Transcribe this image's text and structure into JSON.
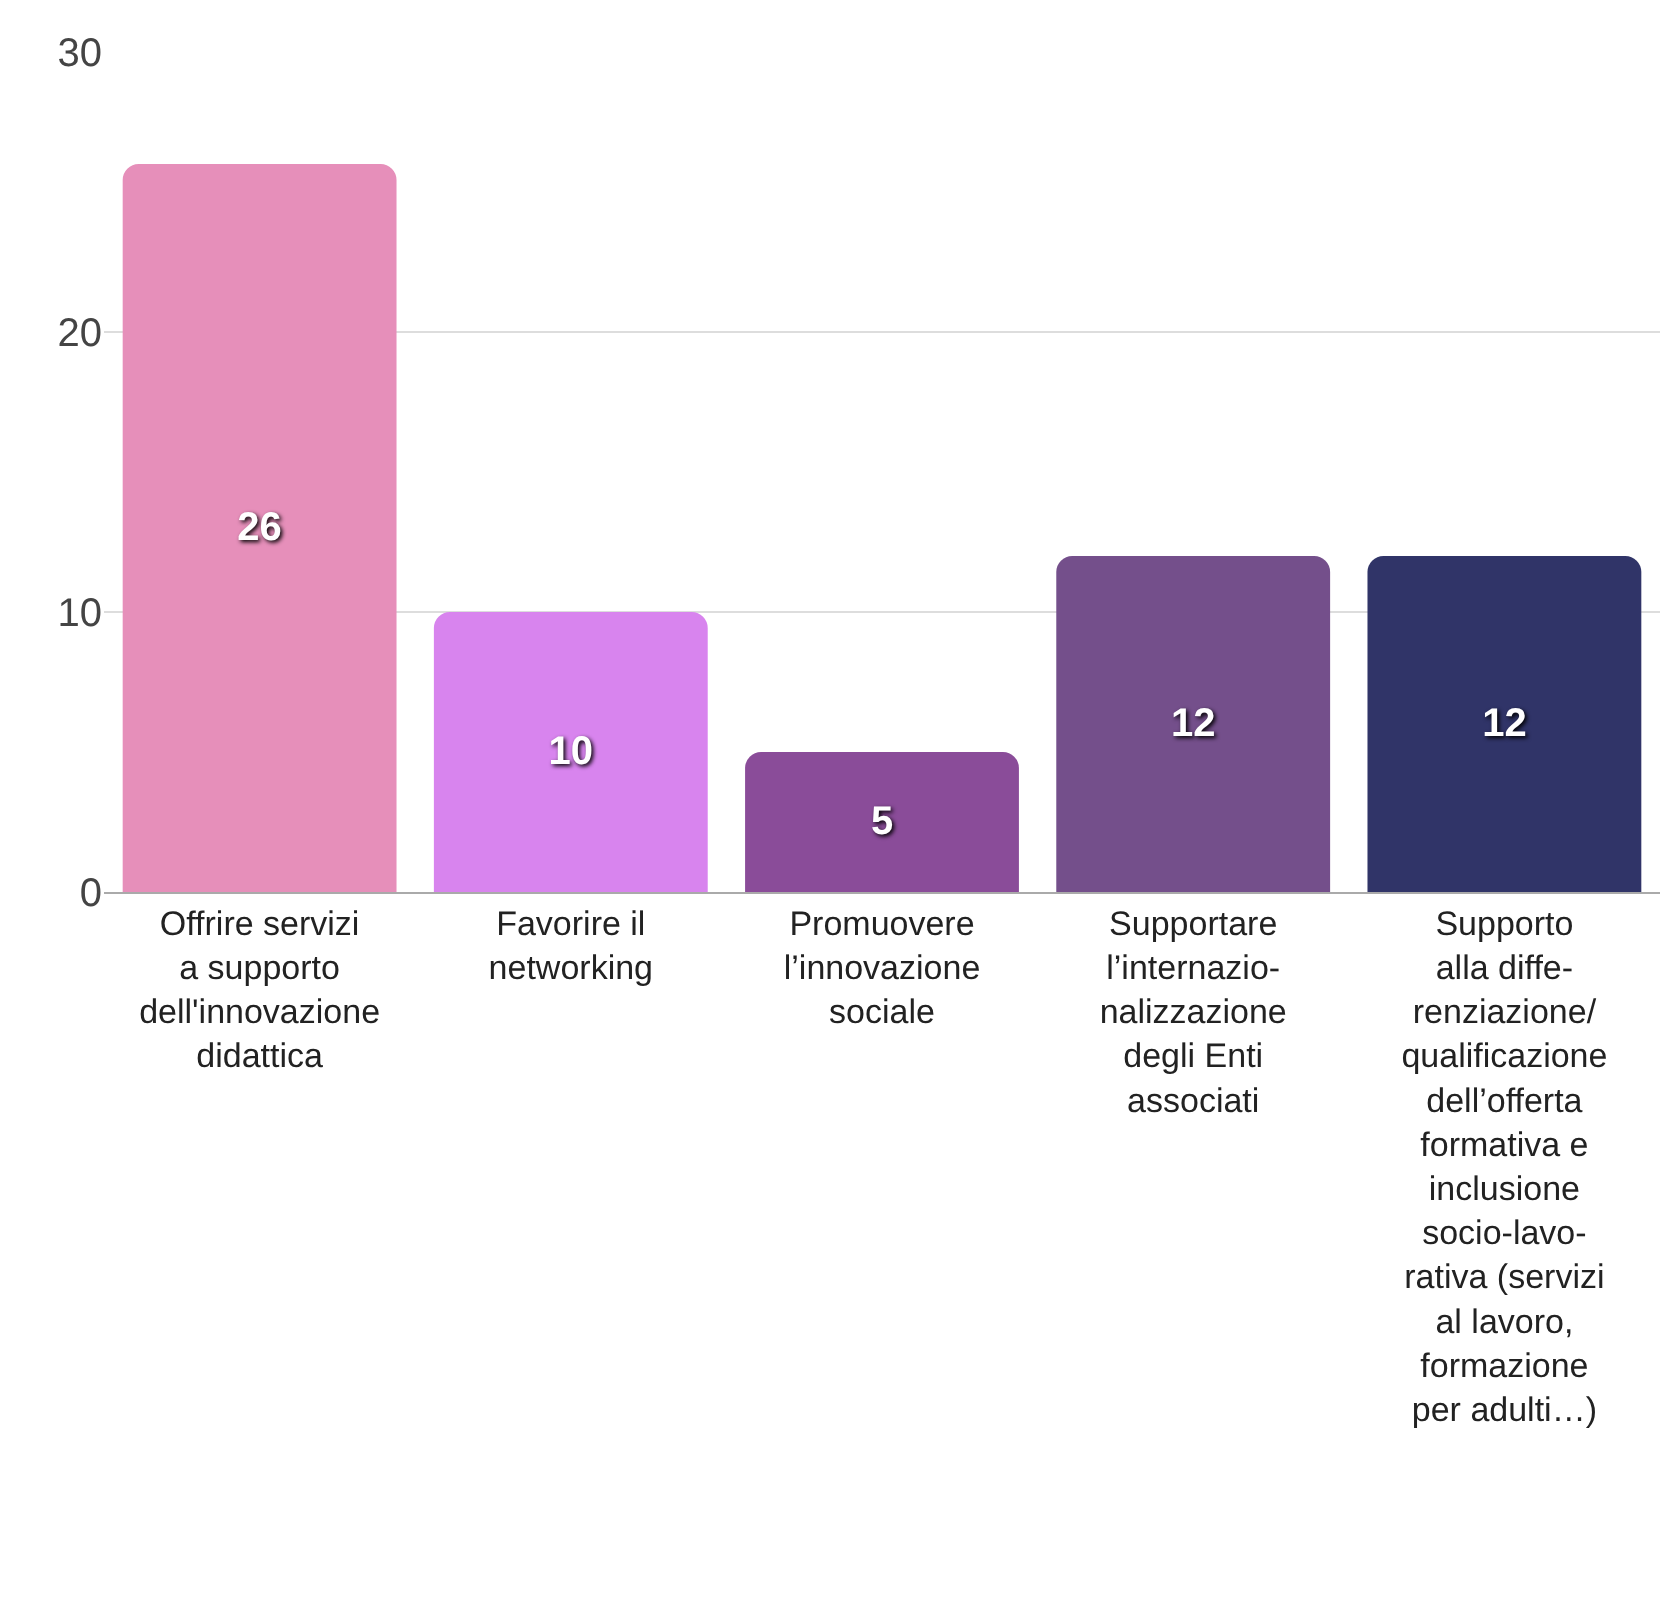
{
  "chart_data": {
    "type": "bar",
    "categories": [
      "Offrire servizi\na supporto\ndell'innovazione\ndidattica",
      "Favorire il\nnetworking",
      "Promuovere\nl’innovazione\nsociale",
      "Supportare\nl’internazio-\nnalizzazione\ndegli Enti\nassociati",
      "Supporto\nalla diffe-\nrenziazione/\nqualificazione\ndell’offerta\nformativa e\ninclusione\nsocio-lavo-\nrativa (servizi\nal lavoro,\nformazione\nper adulti…)"
    ],
    "values": [
      26,
      10,
      5,
      12,
      12
    ],
    "colors": [
      "#e68fba",
      "#d884ee",
      "#8a4c99",
      "#744f8b",
      "#303468"
    ],
    "ylim": [
      0,
      30
    ],
    "yticks": [
      0,
      10,
      20,
      30
    ],
    "grid": "y",
    "data_labels": true
  }
}
